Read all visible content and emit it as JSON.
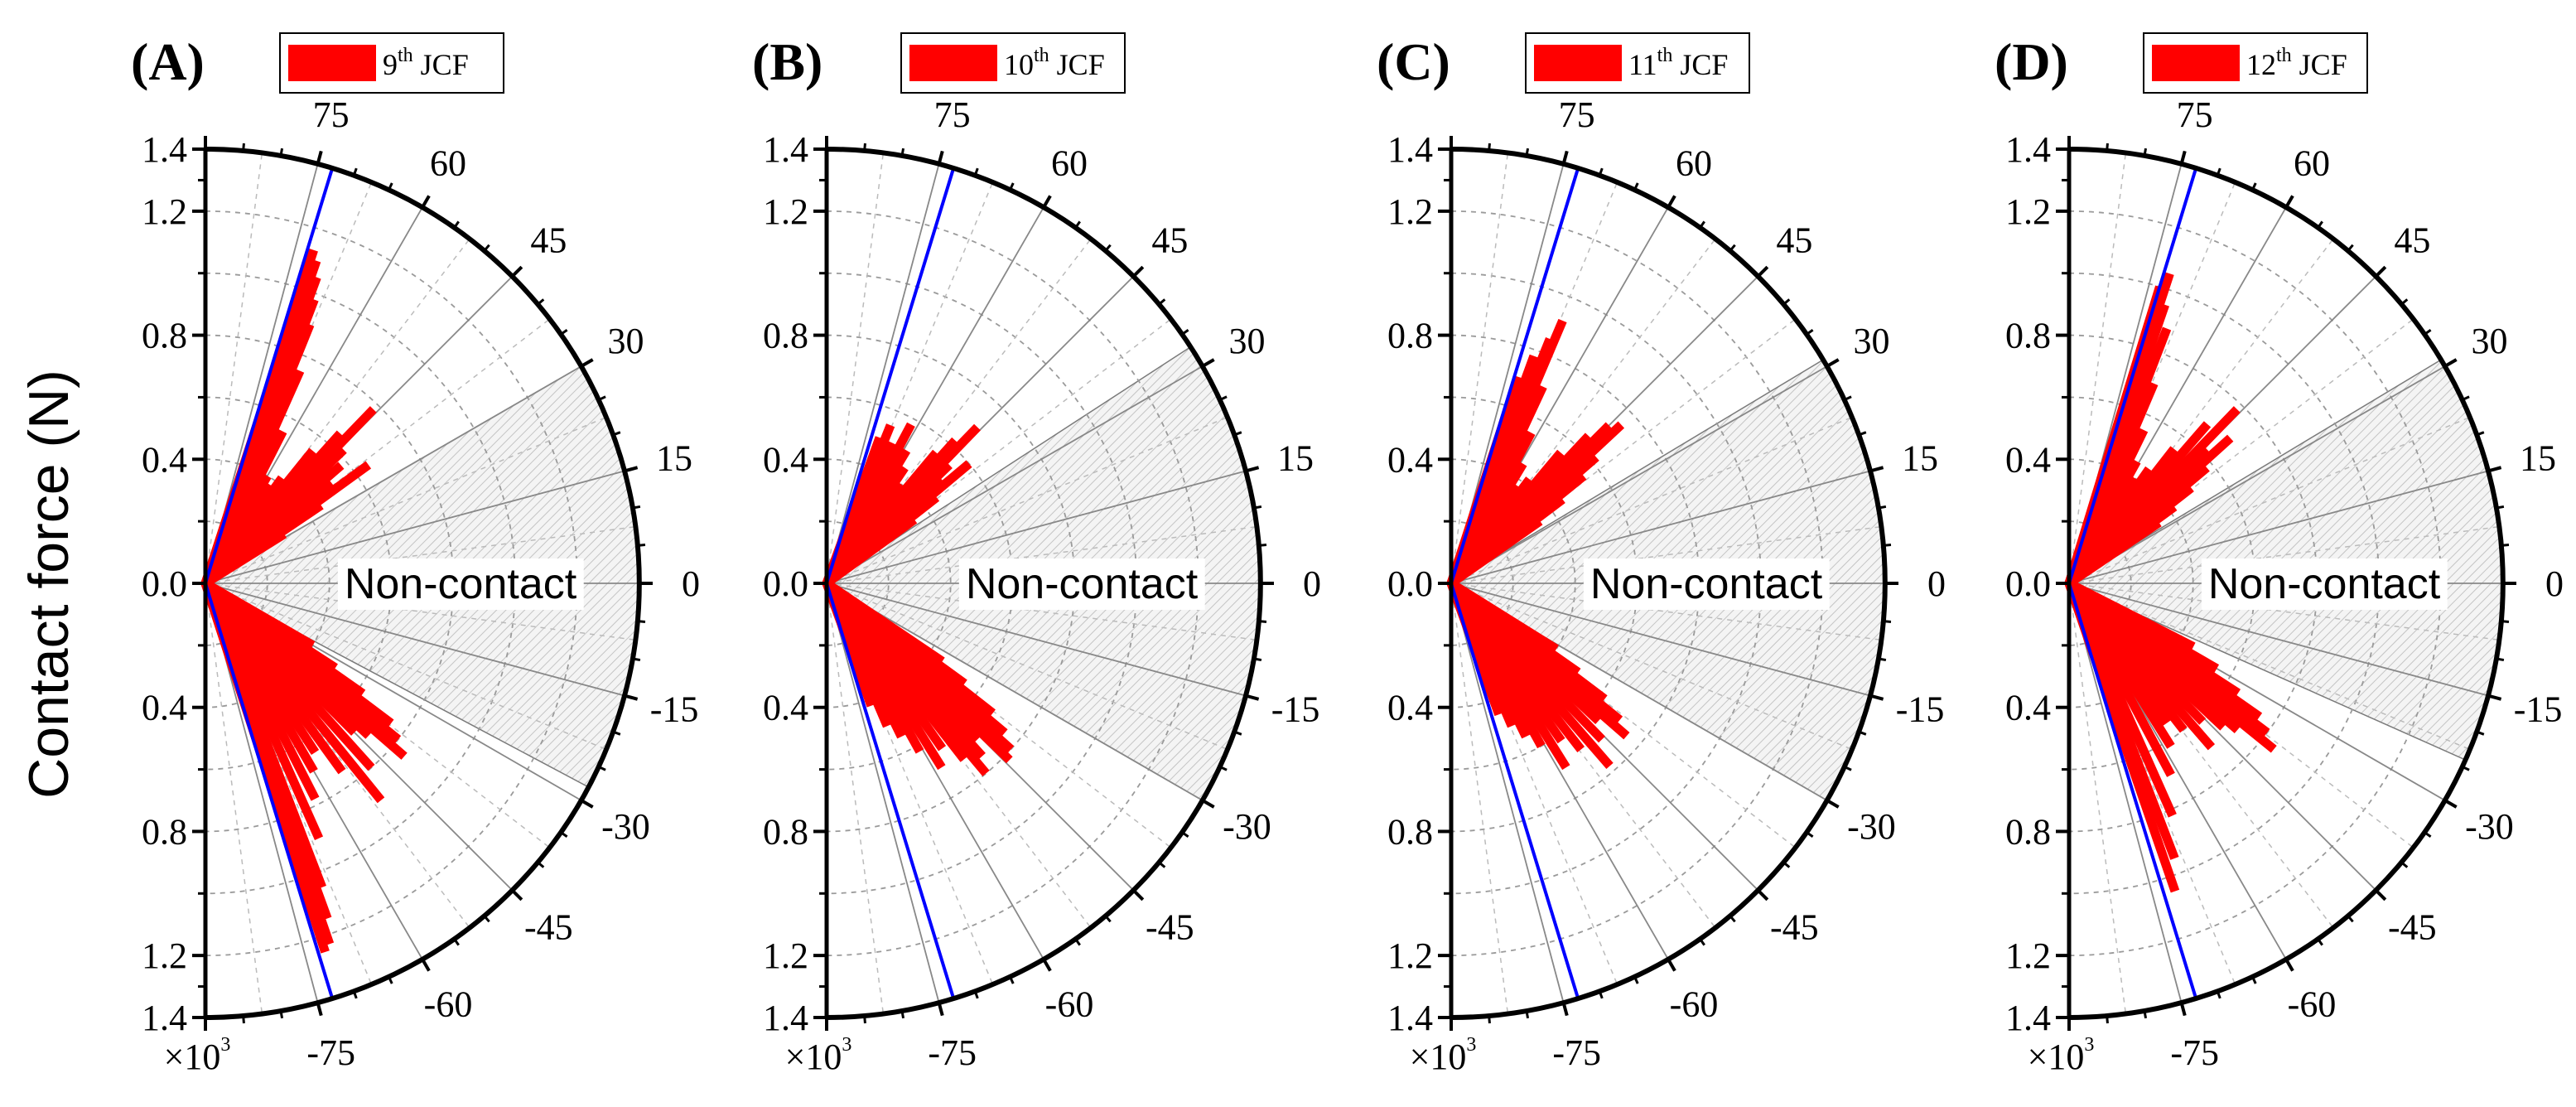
{
  "chart_data": {
    "type": "polar-bar",
    "ylabel": "Contact force (N)",
    "r_range": [
      0,
      1.4
    ],
    "r_ticks": [
      "1.4",
      "1.2",
      "0.8",
      "0.4",
      "0.0",
      "0.4",
      "0.8",
      "1.2",
      "1.4"
    ],
    "r_multiplier": "×10",
    "r_multiplier_exp": "3",
    "angle_range": [
      -90,
      90
    ],
    "angle_labels": [
      "75",
      "60",
      "45",
      "30",
      "15",
      "0",
      "-15",
      "-30",
      "-45",
      "-60",
      "-75"
    ],
    "non_contact_label": "Non-contact",
    "panels": [
      {
        "letter": "A",
        "legend_prefix": "9",
        "legend_sup": "th",
        "legend_suffix": "JCF",
        "noncontact_deg": [
          -28,
          30
        ],
        "blue_line_deg": 73,
        "bars": [
          {
            "angle": 72,
            "r": 1.13
          },
          {
            "angle": 71,
            "r": 1.1
          },
          {
            "angle": 70,
            "r": 1.05
          },
          {
            "angle": 69,
            "r": 0.98
          },
          {
            "angle": 68,
            "r": 0.9
          },
          {
            "angle": 66,
            "r": 0.75
          },
          {
            "angle": 63,
            "r": 0.55
          },
          {
            "angle": 60,
            "r": 0.4
          },
          {
            "angle": 57,
            "r": 0.38
          },
          {
            "angle": 54,
            "r": 0.42
          },
          {
            "angle": 51,
            "r": 0.55
          },
          {
            "angle": 48,
            "r": 0.65
          },
          {
            "angle": 46,
            "r": 0.78
          },
          {
            "angle": 44,
            "r": 0.62
          },
          {
            "angle": 41,
            "r": 0.58
          },
          {
            "angle": 38,
            "r": 0.52
          },
          {
            "angle": 36,
            "r": 0.65
          },
          {
            "angle": 34,
            "r": 0.45
          },
          {
            "angle": 32,
            "r": 0.3
          },
          {
            "angle": -30,
            "r": 0.4
          },
          {
            "angle": -33,
            "r": 0.5
          },
          {
            "angle": -35,
            "r": 0.62
          },
          {
            "angle": -37,
            "r": 0.75
          },
          {
            "angle": -39,
            "r": 0.8
          },
          {
            "angle": -41,
            "r": 0.85
          },
          {
            "angle": -43,
            "r": 0.72
          },
          {
            "angle": -45,
            "r": 0.68
          },
          {
            "angle": -48,
            "r": 0.8
          },
          {
            "angle": -51,
            "r": 0.9
          },
          {
            "angle": -54,
            "r": 0.75
          },
          {
            "angle": -57,
            "r": 0.65
          },
          {
            "angle": -60,
            "r": 0.7
          },
          {
            "angle": -63,
            "r": 0.78
          },
          {
            "angle": -66,
            "r": 0.9
          },
          {
            "angle": -69,
            "r": 1.05
          },
          {
            "angle": -70,
            "r": 1.15
          },
          {
            "angle": -71,
            "r": 1.23
          },
          {
            "angle": -72,
            "r": 1.25
          }
        ]
      },
      {
        "letter": "B",
        "legend_prefix": "10",
        "legend_sup": "th",
        "legend_suffix": "JCF",
        "noncontact_deg": [
          -30,
          33
        ],
        "blue_line_deg": 73,
        "bars": [
          {
            "angle": 70,
            "r": 0.5
          },
          {
            "angle": 68,
            "r": 0.55
          },
          {
            "angle": 65,
            "r": 0.5
          },
          {
            "angle": 62,
            "r": 0.58
          },
          {
            "angle": 59,
            "r": 0.5
          },
          {
            "angle": 56,
            "r": 0.45
          },
          {
            "angle": 53,
            "r": 0.4
          },
          {
            "angle": 50,
            "r": 0.55
          },
          {
            "angle": 48,
            "r": 0.62
          },
          {
            "angle": 46,
            "r": 0.7
          },
          {
            "angle": 44,
            "r": 0.55
          },
          {
            "angle": 42,
            "r": 0.5
          },
          {
            "angle": 40,
            "r": 0.6
          },
          {
            "angle": 38,
            "r": 0.45
          },
          {
            "angle": 36,
            "r": 0.35
          },
          {
            "angle": -34,
            "r": 0.45
          },
          {
            "angle": -36,
            "r": 0.55
          },
          {
            "angle": -38,
            "r": 0.68
          },
          {
            "angle": -40,
            "r": 0.75
          },
          {
            "angle": -42,
            "r": 0.8
          },
          {
            "angle": -44,
            "r": 0.82
          },
          {
            "angle": -46,
            "r": 0.7
          },
          {
            "angle": -48,
            "r": 0.75
          },
          {
            "angle": -50,
            "r": 0.8
          },
          {
            "angle": -52,
            "r": 0.72
          },
          {
            "angle": -55,
            "r": 0.65
          },
          {
            "angle": -58,
            "r": 0.7
          },
          {
            "angle": -61,
            "r": 0.62
          },
          {
            "angle": -64,
            "r": 0.55
          },
          {
            "angle": -67,
            "r": 0.5
          },
          {
            "angle": -70,
            "r": 0.42
          }
        ]
      },
      {
        "letter": "C",
        "legend_prefix": "11",
        "legend_sup": "th",
        "legend_suffix": "JCF",
        "noncontact_deg": [
          -30,
          31
        ],
        "blue_line_deg": 73,
        "bars": [
          {
            "angle": 72,
            "r": 0.7
          },
          {
            "angle": 70,
            "r": 0.78
          },
          {
            "angle": 68,
            "r": 0.85
          },
          {
            "angle": 67,
            "r": 0.92
          },
          {
            "angle": 65,
            "r": 0.7
          },
          {
            "angle": 62,
            "r": 0.55
          },
          {
            "angle": 59,
            "r": 0.45
          },
          {
            "angle": 56,
            "r": 0.38
          },
          {
            "angle": 53,
            "r": 0.42
          },
          {
            "angle": 50,
            "r": 0.55
          },
          {
            "angle": 47,
            "r": 0.65
          },
          {
            "angle": 45,
            "r": 0.72
          },
          {
            "angle": 43,
            "r": 0.75
          },
          {
            "angle": 41,
            "r": 0.62
          },
          {
            "angle": 39,
            "r": 0.55
          },
          {
            "angle": 37,
            "r": 0.45
          },
          {
            "angle": 35,
            "r": 0.35
          },
          {
            "angle": -32,
            "r": 0.4
          },
          {
            "angle": -35,
            "r": 0.5
          },
          {
            "angle": -37,
            "r": 0.62
          },
          {
            "angle": -39,
            "r": 0.7
          },
          {
            "angle": -41,
            "r": 0.75
          },
          {
            "angle": -43,
            "r": 0.65
          },
          {
            "angle": -46,
            "r": 0.7
          },
          {
            "angle": -49,
            "r": 0.78
          },
          {
            "angle": -52,
            "r": 0.68
          },
          {
            "angle": -55,
            "r": 0.62
          },
          {
            "angle": -58,
            "r": 0.7
          },
          {
            "angle": -61,
            "r": 0.6
          },
          {
            "angle": -64,
            "r": 0.55
          },
          {
            "angle": -67,
            "r": 0.5
          },
          {
            "angle": -70,
            "r": 0.45
          }
        ]
      },
      {
        "letter": "D",
        "legend_prefix": "12",
        "legend_sup": "th",
        "legend_suffix": "JCF",
        "noncontact_deg": [
          -24,
          31
        ],
        "blue_line_deg": 73,
        "bars": [
          {
            "angle": 73,
            "r": 1.0
          },
          {
            "angle": 72,
            "r": 1.05
          },
          {
            "angle": 71,
            "r": 0.95
          },
          {
            "angle": 69,
            "r": 0.88
          },
          {
            "angle": 67,
            "r": 0.7
          },
          {
            "angle": 64,
            "r": 0.55
          },
          {
            "angle": 61,
            "r": 0.45
          },
          {
            "angle": 58,
            "r": 0.4
          },
          {
            "angle": 55,
            "r": 0.45
          },
          {
            "angle": 52,
            "r": 0.55
          },
          {
            "angle": 49,
            "r": 0.68
          },
          {
            "angle": 46,
            "r": 0.78
          },
          {
            "angle": 44,
            "r": 0.62
          },
          {
            "angle": 42,
            "r": 0.7
          },
          {
            "angle": 40,
            "r": 0.58
          },
          {
            "angle": 38,
            "r": 0.5
          },
          {
            "angle": 36,
            "r": 0.42
          },
          {
            "angle": 34,
            "r": 0.35
          },
          {
            "angle": -27,
            "r": 0.45
          },
          {
            "angle": -30,
            "r": 0.55
          },
          {
            "angle": -33,
            "r": 0.65
          },
          {
            "angle": -35,
            "r": 0.75
          },
          {
            "angle": -37,
            "r": 0.8
          },
          {
            "angle": -39,
            "r": 0.85
          },
          {
            "angle": -41,
            "r": 0.72
          },
          {
            "angle": -43,
            "r": 0.68
          },
          {
            "angle": -46,
            "r": 0.62
          },
          {
            "angle": -49,
            "r": 0.7
          },
          {
            "angle": -52,
            "r": 0.6
          },
          {
            "angle": -55,
            "r": 0.55
          },
          {
            "angle": -58,
            "r": 0.62
          },
          {
            "angle": -62,
            "r": 0.7
          },
          {
            "angle": -66,
            "r": 0.82
          },
          {
            "angle": -69,
            "r": 0.95
          },
          {
            "angle": -71,
            "r": 1.05
          }
        ]
      }
    ]
  },
  "colors": {
    "bar": "#ff0000",
    "blue_line": "#0000ff",
    "grid": "#9a9a9a",
    "axis": "#000000",
    "shade": "#d8d8d8"
  }
}
